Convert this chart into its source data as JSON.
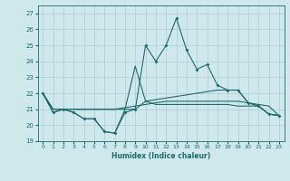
{
  "xlabel": "Humidex (Indice chaleur)",
  "xlim": [
    -0.5,
    23.5
  ],
  "ylim": [
    19,
    27.5
  ],
  "yticks": [
    19,
    20,
    21,
    22,
    23,
    24,
    25,
    26,
    27
  ],
  "xticks": [
    0,
    1,
    2,
    3,
    4,
    5,
    6,
    7,
    8,
    9,
    10,
    11,
    12,
    13,
    14,
    15,
    16,
    17,
    18,
    19,
    20,
    21,
    22,
    23
  ],
  "bg_color": "#cfe8ec",
  "grid_color": "#aeccd0",
  "line_color": "#1e6b6b",
  "lines": [
    [
      22.0,
      20.8,
      21.0,
      20.8,
      20.4,
      20.4,
      19.6,
      19.5,
      20.8,
      21.0,
      25.0,
      24.0,
      25.0,
      26.7,
      24.7,
      23.5,
      23.8,
      22.5,
      22.2,
      22.2,
      21.4,
      21.2,
      20.7,
      20.6
    ],
    [
      22.0,
      20.8,
      21.0,
      20.8,
      20.4,
      20.4,
      19.6,
      19.5,
      21.0,
      23.7,
      21.5,
      21.3,
      21.3,
      21.3,
      21.3,
      21.3,
      21.3,
      21.3,
      21.3,
      21.2,
      21.2,
      21.2,
      20.7,
      20.6
    ],
    [
      22.0,
      21.0,
      21.0,
      21.0,
      21.0,
      21.0,
      21.0,
      21.0,
      21.1,
      21.2,
      21.3,
      21.4,
      21.5,
      21.5,
      21.5,
      21.5,
      21.5,
      21.5,
      21.5,
      21.5,
      21.4,
      21.3,
      21.2,
      20.6
    ],
    [
      22.0,
      21.0,
      21.0,
      21.0,
      21.0,
      21.0,
      21.0,
      21.0,
      21.0,
      21.0,
      21.5,
      21.6,
      21.7,
      21.8,
      21.9,
      22.0,
      22.1,
      22.2,
      22.2,
      22.2,
      21.4,
      21.2,
      20.7,
      20.6
    ]
  ],
  "markers": [
    true,
    false,
    false,
    false
  ]
}
